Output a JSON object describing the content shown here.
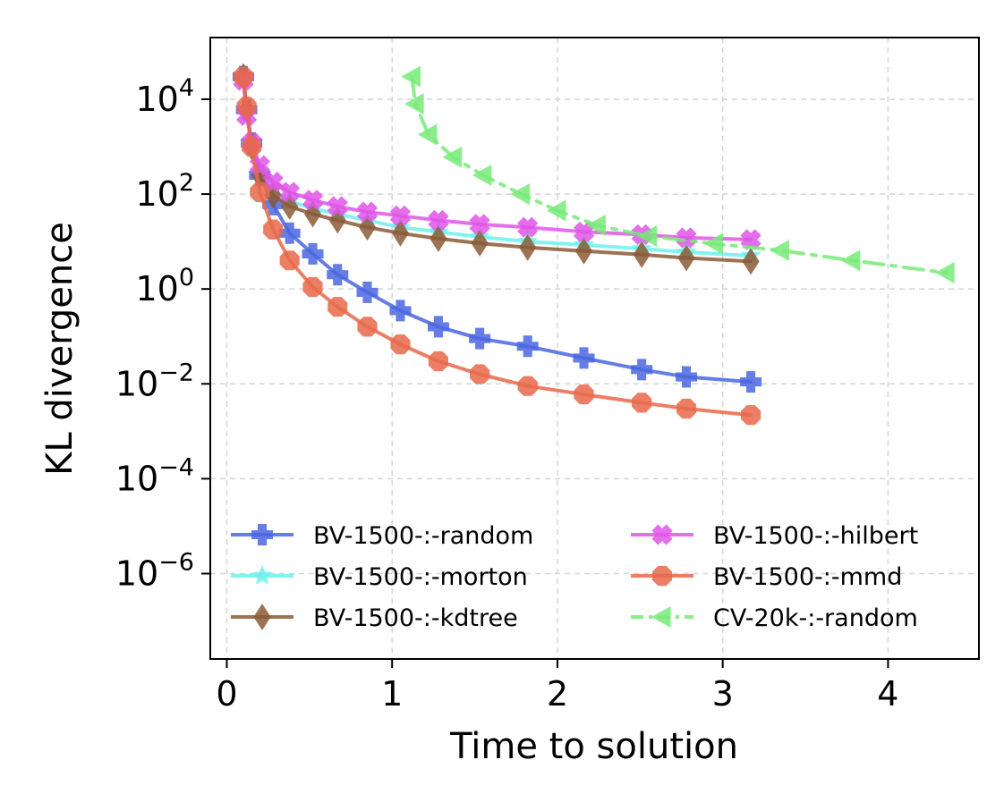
{
  "chart_data": {
    "type": "line",
    "title": "",
    "xlabel": "Time to solution",
    "ylabel": "KL divergence",
    "xlim": [
      -0.1,
      4.55
    ],
    "ylim_log10": [
      -7.8,
      5.3
    ],
    "yscale": "log",
    "xticks": [
      0,
      1,
      2,
      3,
      4
    ],
    "xtick_labels": [
      "0",
      "1",
      "2",
      "3",
      "4"
    ],
    "yticks_exp": [
      4,
      2,
      0,
      -2,
      -4,
      -6
    ],
    "grid": true,
    "legend_position": "lower-left",
    "legend_columns": 2,
    "series": [
      {
        "name": "BV-1500-:-random",
        "color": "#4a66e0",
        "marker": "plus",
        "linestyle": "solid",
        "x": [
          0.1,
          0.12,
          0.15,
          0.2,
          0.28,
          0.38,
          0.52,
          0.67,
          0.85,
          1.05,
          1.28,
          1.53,
          1.82,
          2.16,
          2.51,
          2.78,
          3.17
        ],
        "y": [
          30000,
          6000,
          1200,
          250,
          60,
          15,
          5.5,
          2.0,
          0.85,
          0.35,
          0.16,
          0.09,
          0.062,
          0.035,
          0.02,
          0.014,
          0.011
        ]
      },
      {
        "name": "BV-1500-:-morton",
        "color": "#6ef0ec",
        "marker": "star",
        "linestyle": "solid",
        "x": [
          0.1,
          0.12,
          0.15,
          0.2,
          0.28,
          0.38,
          0.52,
          0.67,
          0.85,
          1.05,
          1.28,
          1.53,
          1.82,
          2.16,
          2.51,
          2.78,
          3.17
        ],
        "y": [
          30000,
          6000,
          1100,
          280,
          120,
          70,
          50,
          38,
          28,
          20,
          16,
          12.5,
          10,
          8.5,
          7,
          6,
          5
        ]
      },
      {
        "name": "BV-1500-:-kdtree",
        "color": "#8b5a36",
        "marker": "diamond",
        "linestyle": "solid",
        "x": [
          0.1,
          0.12,
          0.15,
          0.2,
          0.28,
          0.38,
          0.52,
          0.67,
          0.85,
          1.05,
          1.28,
          1.53,
          1.82,
          2.16,
          2.51,
          2.78,
          3.17
        ],
        "y": [
          30000,
          6000,
          1000,
          250,
          95,
          55,
          38,
          28,
          20,
          15,
          11.5,
          9.2,
          7.5,
          6.3,
          5.3,
          4.5,
          3.8
        ]
      },
      {
        "name": "BV-1500-:-hilbert",
        "color": "#e055e8",
        "marker": "x",
        "linestyle": "solid",
        "x": [
          0.1,
          0.12,
          0.15,
          0.2,
          0.28,
          0.38,
          0.52,
          0.67,
          0.85,
          1.05,
          1.28,
          1.53,
          1.82,
          2.16,
          2.51,
          2.78,
          3.17
        ],
        "y": [
          25000,
          4500,
          1200,
          400,
          180,
          110,
          75,
          55,
          42,
          35,
          28,
          23,
          20,
          16,
          14,
          12,
          11
        ]
      },
      {
        "name": "BV-1500-:-mmd",
        "color": "#e8684a",
        "marker": "circle",
        "linestyle": "solid",
        "x": [
          0.1,
          0.12,
          0.15,
          0.2,
          0.28,
          0.38,
          0.52,
          0.67,
          0.85,
          1.05,
          1.28,
          1.53,
          1.82,
          2.16,
          2.51,
          2.78,
          3.17
        ],
        "y": [
          30000,
          7000,
          1000,
          110,
          18,
          4,
          1.1,
          0.42,
          0.16,
          0.068,
          0.03,
          0.016,
          0.009,
          0.006,
          0.004,
          0.003,
          0.0022
        ]
      },
      {
        "name": "CV-20k-:-random",
        "color": "#78ea78",
        "marker": "triangle-left",
        "linestyle": "dashdot",
        "x": [
          1.12,
          1.14,
          1.22,
          1.37,
          1.55,
          1.78,
          2.0,
          2.24,
          2.55,
          2.95,
          3.35,
          3.78,
          4.35
        ],
        "y": [
          30000,
          8000,
          1800,
          600,
          250,
          100,
          45,
          22,
          13,
          9,
          6.5,
          4,
          2.2
        ]
      }
    ]
  }
}
